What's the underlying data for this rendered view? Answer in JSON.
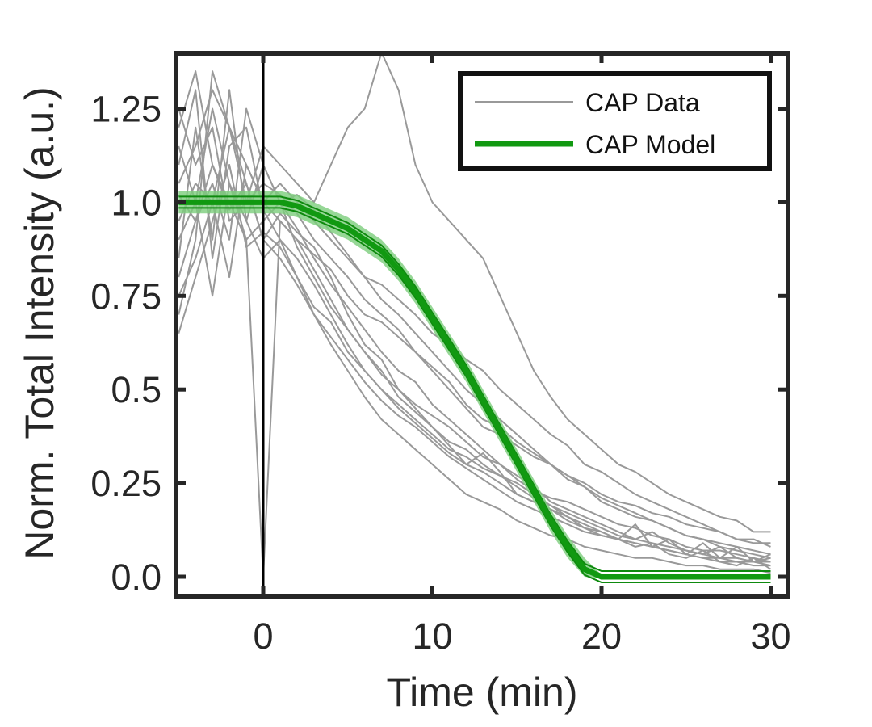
{
  "chart_data": {
    "type": "line",
    "title": "",
    "xlabel": "Time (min)",
    "ylabel": "Norm. Total Intensity (a.u.)",
    "xlim": [
      -5,
      30
    ],
    "ylim": [
      -0.05,
      1.4
    ],
    "xticks": [
      {
        "value": 0,
        "label": "0"
      },
      {
        "value": 10,
        "label": "10"
      },
      {
        "value": 20,
        "label": "20"
      },
      {
        "value": 30,
        "label": "30"
      }
    ],
    "yticks": [
      {
        "value": 0,
        "label": "0.0"
      },
      {
        "value": 0.25,
        "label": "0.25"
      },
      {
        "value": 0.5,
        "label": "0.5"
      },
      {
        "value": 0.75,
        "label": "0.75"
      },
      {
        "value": 1.0,
        "label": "1.0"
      },
      {
        "value": 1.25,
        "label": "1.25"
      }
    ],
    "grid": false,
    "legend_position": "top-right",
    "vline_x": 0,
    "colors": {
      "data": "#999999",
      "model": "#119911",
      "model_band": "#7ccd7c",
      "axes": "#262626",
      "vline": "#000000"
    },
    "series": [
      {
        "name": "CAP Data",
        "role": "data",
        "x": [
          -5,
          -4,
          -3,
          -2,
          -1,
          0,
          1,
          2,
          3,
          4,
          5,
          6,
          7,
          8,
          9,
          10,
          11,
          12,
          13,
          14,
          15,
          16,
          17,
          18,
          19,
          20,
          21,
          22,
          23,
          24,
          25,
          26,
          27,
          28,
          29,
          30
        ],
        "values": [
          1.02,
          0.95,
          1.1,
          0.98,
          1.05,
          0.9,
          0.97,
          0.92,
          0.88,
          0.8,
          0.7,
          0.62,
          0.58,
          0.5,
          0.45,
          0.4,
          0.35,
          0.3,
          0.33,
          0.28,
          0.22,
          0.2,
          0.18,
          0.15,
          0.13,
          0.12,
          0.1,
          0.14,
          0.08,
          0.1,
          0.06,
          0.09,
          0.05,
          0.08,
          0.04,
          0.06
        ]
      },
      {
        "name": "",
        "role": "data",
        "x": [
          -5,
          -4,
          -3,
          -2,
          -1,
          0,
          1,
          2,
          3,
          4,
          5,
          6,
          7,
          8,
          9,
          10,
          11,
          12,
          13,
          14,
          15,
          16,
          17,
          18,
          19,
          20,
          21,
          22,
          23,
          24,
          25,
          26,
          27,
          28,
          29,
          30
        ],
        "values": [
          0.85,
          1.2,
          0.9,
          1.3,
          0.95,
          1.1,
          1.0,
          0.93,
          0.85,
          0.78,
          0.72,
          0.66,
          0.6,
          0.55,
          0.52,
          0.46,
          0.42,
          0.38,
          0.34,
          0.3,
          0.27,
          0.24,
          0.2,
          0.18,
          0.16,
          0.14,
          0.12,
          0.1,
          0.12,
          0.09,
          0.07,
          0.06,
          0.08,
          0.05,
          0.04,
          0.05
        ]
      },
      {
        "name": "",
        "role": "data",
        "x": [
          -5,
          -4,
          -3,
          -2,
          -1,
          0,
          1,
          2,
          3,
          4,
          5,
          6,
          7,
          8,
          9,
          10,
          11,
          12,
          13,
          14,
          15,
          16,
          17,
          18,
          19,
          20,
          21,
          22,
          23,
          24,
          25,
          26,
          27,
          28,
          29,
          30
        ],
        "values": [
          1.15,
          1.0,
          1.25,
          1.05,
          0.9,
          0.0,
          0.95,
          0.9,
          0.82,
          0.74,
          0.66,
          0.6,
          0.55,
          0.48,
          0.44,
          0.4,
          0.36,
          0.34,
          0.3,
          0.27,
          0.25,
          0.22,
          0.19,
          0.16,
          0.13,
          0.11,
          0.1,
          0.08,
          0.09,
          0.06,
          0.05,
          0.07,
          0.04,
          0.03,
          0.05,
          0.02
        ]
      },
      {
        "name": "",
        "role": "data",
        "x": [
          -5,
          -4,
          -3,
          -2,
          -1,
          0,
          1,
          2,
          3,
          4,
          5,
          6,
          7,
          8,
          9,
          10,
          11,
          12,
          13,
          14,
          15,
          16,
          17,
          18,
          19,
          20,
          21,
          22,
          23,
          24,
          25,
          26,
          27,
          28,
          29,
          30
        ],
        "values": [
          0.7,
          0.9,
          1.35,
          1.2,
          1.0,
          1.05,
          1.02,
          0.97,
          0.9,
          0.85,
          0.8,
          0.74,
          0.7,
          0.66,
          0.6,
          0.56,
          0.52,
          0.46,
          0.42,
          0.4,
          0.36,
          0.33,
          0.3,
          0.26,
          0.24,
          0.2,
          0.18,
          0.16,
          0.15,
          0.13,
          0.11,
          0.1,
          0.08,
          0.07,
          0.06,
          0.05
        ]
      },
      {
        "name": "",
        "role": "data",
        "x": [
          -5,
          -4,
          -3,
          -2,
          -1,
          0,
          1,
          2,
          3,
          4,
          5,
          6,
          7,
          8,
          9,
          10,
          11,
          12,
          13,
          14,
          15,
          16,
          17,
          18,
          19,
          20,
          21,
          22,
          23,
          24,
          25,
          26,
          27,
          28,
          29,
          30
        ],
        "values": [
          1.1,
          1.3,
          0.85,
          1.15,
          1.2,
          0.98,
          0.9,
          0.85,
          0.78,
          0.7,
          0.62,
          0.55,
          0.5,
          0.45,
          0.41,
          0.37,
          0.33,
          0.3,
          0.28,
          0.25,
          0.22,
          0.2,
          0.18,
          0.16,
          0.14,
          0.12,
          0.1,
          0.09,
          0.08,
          0.07,
          0.06,
          0.05,
          0.04,
          0.04,
          0.03,
          0.03
        ]
      },
      {
        "name": "",
        "role": "data",
        "x": [
          -5,
          -4,
          -3,
          -2,
          -1,
          0,
          1,
          2,
          3,
          4,
          5,
          6,
          7,
          8,
          9,
          10,
          11,
          12,
          13,
          14,
          15,
          16,
          17,
          18,
          19,
          20,
          21,
          22,
          23,
          24,
          25,
          26,
          27,
          28,
          29,
          30
        ],
        "values": [
          0.95,
          1.05,
          1.0,
          0.8,
          1.1,
          1.0,
          1.05,
          1.0,
          0.95,
          0.9,
          0.85,
          0.8,
          0.78,
          0.74,
          0.7,
          0.65,
          0.62,
          0.58,
          0.55,
          0.5,
          0.46,
          0.42,
          0.38,
          0.35,
          0.3,
          0.28,
          0.25,
          0.22,
          0.2,
          0.18,
          0.16,
          0.14,
          0.12,
          0.1,
          0.1,
          0.08
        ]
      },
      {
        "name": "",
        "role": "data",
        "x": [
          -5,
          -4,
          -3,
          -2,
          -1,
          0,
          1,
          2,
          3,
          4,
          5,
          6,
          7,
          8,
          9,
          10,
          11,
          12,
          13,
          14,
          15,
          16,
          17,
          18,
          19,
          20,
          21,
          22,
          23,
          24,
          25,
          26,
          27,
          28,
          29,
          30
        ],
        "values": [
          0.65,
          0.8,
          0.95,
          1.1,
          0.88,
          0.92,
          0.88,
          0.8,
          0.7,
          0.62,
          0.55,
          0.48,
          0.42,
          0.38,
          0.34,
          0.3,
          0.26,
          0.22,
          0.2,
          0.18,
          0.15,
          0.13,
          0.11,
          0.1,
          0.08,
          0.07,
          0.06,
          0.05,
          0.05,
          0.04,
          0.03,
          0.03,
          0.02,
          0.02,
          0.02,
          0.01
        ]
      },
      {
        "name": "",
        "role": "data",
        "x": [
          -5,
          -4,
          -3,
          -2,
          -1,
          0,
          1,
          2,
          3,
          4,
          5,
          6,
          7,
          8,
          9,
          10,
          11,
          12,
          13,
          14,
          15,
          16,
          17,
          18,
          19,
          20,
          21,
          22,
          23,
          24,
          25,
          26,
          27,
          28,
          29,
          30
        ],
        "values": [
          1.25,
          1.1,
          1.2,
          0.95,
          1.0,
          1.15,
          1.1,
          1.05,
          1.0,
          1.1,
          1.2,
          1.25,
          1.4,
          1.3,
          1.1,
          1.0,
          0.95,
          0.9,
          0.85,
          0.75,
          0.65,
          0.55,
          0.48,
          0.42,
          0.38,
          0.34,
          0.3,
          0.28,
          0.25,
          0.22,
          0.2,
          0.18,
          0.16,
          0.15,
          0.12,
          0.12
        ]
      },
      {
        "name": "",
        "role": "data",
        "x": [
          -5,
          -4,
          -3,
          -2,
          -1,
          0,
          1,
          2,
          3,
          4,
          5,
          6,
          7,
          8,
          9,
          10,
          11,
          12,
          13,
          14,
          15,
          16,
          17,
          18,
          19,
          20,
          21,
          22,
          23,
          24,
          25,
          26,
          27,
          28,
          29,
          30
        ],
        "values": [
          0.9,
          1.0,
          0.75,
          1.05,
          0.95,
          0.85,
          0.9,
          0.8,
          0.72,
          0.68,
          0.6,
          0.55,
          0.5,
          0.46,
          0.42,
          0.38,
          0.34,
          0.32,
          0.29,
          0.27,
          0.24,
          0.21,
          0.19,
          0.17,
          0.15,
          0.13,
          0.11,
          0.1,
          0.09,
          0.08,
          0.07,
          0.06,
          0.05,
          0.05,
          0.04,
          0.04
        ]
      },
      {
        "name": "",
        "role": "data",
        "x": [
          -5,
          -4,
          -3,
          -2,
          -1,
          0,
          1,
          2,
          3,
          4,
          5,
          6,
          7,
          8,
          9,
          10,
          11,
          12,
          13,
          14,
          15,
          16,
          17,
          18,
          19,
          20,
          21,
          22,
          23,
          24,
          25,
          26,
          27,
          28,
          29,
          30
        ],
        "values": [
          1.05,
          1.15,
          1.3,
          1.2,
          1.1,
          1.0,
          0.95,
          0.9,
          0.86,
          0.82,
          0.75,
          0.7,
          0.68,
          0.64,
          0.6,
          0.55,
          0.5,
          0.45,
          0.4,
          0.38,
          0.35,
          0.32,
          0.3,
          0.27,
          0.25,
          0.22,
          0.2,
          0.19,
          0.17,
          0.16,
          0.14,
          0.13,
          0.12,
          0.1,
          0.09,
          0.09
        ]
      },
      {
        "name": "",
        "role": "data",
        "x": [
          -5,
          -4,
          -3,
          -2,
          -1,
          0,
          1,
          2,
          3,
          4,
          5,
          6,
          7,
          8,
          9,
          10,
          11,
          12,
          13,
          14,
          15,
          16,
          17,
          18,
          19,
          20,
          21,
          22,
          23,
          24,
          25,
          26,
          27,
          28,
          29,
          30
        ],
        "values": [
          0.8,
          0.95,
          1.05,
          0.9,
          1.25,
          1.1,
          1.0,
          0.88,
          0.8,
          0.72,
          0.66,
          0.6,
          0.54,
          0.5,
          0.46,
          0.43,
          0.4,
          0.36,
          0.32,
          0.3,
          0.26,
          0.23,
          0.21,
          0.2,
          0.18,
          0.16,
          0.14,
          0.13,
          0.11,
          0.1,
          0.08,
          0.07,
          0.07,
          0.06,
          0.05,
          0.04
        ]
      },
      {
        "name": "",
        "role": "data",
        "x": [
          -5,
          -4,
          -3,
          -2,
          -1,
          0,
          1,
          2,
          3,
          4,
          5,
          6,
          7,
          8,
          9,
          10,
          11,
          12,
          13,
          14,
          15,
          16,
          17,
          18,
          19,
          20,
          21,
          22,
          23,
          24,
          25,
          26,
          27,
          28,
          29,
          30
        ],
        "values": [
          1.2,
          1.35,
          1.1,
          1.0,
          0.9,
          0.95,
          1.0,
          1.02,
          0.98,
          0.92,
          0.86,
          0.8,
          0.74,
          0.7,
          0.65,
          0.6,
          0.55,
          0.5,
          0.46,
          0.42,
          0.38,
          0.34,
          0.3,
          0.27,
          0.24,
          0.21,
          0.19,
          0.17,
          0.15,
          0.13,
          0.11,
          0.1,
          0.09,
          0.08,
          0.07,
          0.06
        ]
      },
      {
        "name": "",
        "role": "data",
        "x": [
          -5,
          -4,
          -3,
          -2,
          -1,
          0,
          1,
          2,
          3,
          4,
          5,
          6,
          7,
          8,
          9,
          10,
          11,
          12,
          13,
          14,
          15,
          16,
          17,
          18,
          19,
          20,
          21,
          22,
          23,
          24,
          25,
          26,
          27,
          28,
          29,
          30
        ],
        "values": [
          0.75,
          0.85,
          1.0,
          1.2,
          1.05,
          0.9,
          0.85,
          0.78,
          0.7,
          0.64,
          0.58,
          0.52,
          0.47,
          0.43,
          0.4,
          0.36,
          0.32,
          0.29,
          0.26,
          0.23,
          0.2,
          0.18,
          0.16,
          0.14,
          0.12,
          0.11,
          0.1,
          0.09,
          0.08,
          0.07,
          0.06,
          0.05,
          0.05,
          0.04,
          0.04,
          0.03
        ]
      },
      {
        "name": "CAP Model",
        "role": "model",
        "x": [
          -5,
          -4,
          -3,
          -2,
          -1,
          0,
          1,
          2,
          3,
          4,
          5,
          6,
          7,
          8,
          9,
          10,
          11,
          12,
          13,
          14,
          15,
          16,
          17,
          18,
          19,
          20,
          21,
          22,
          23,
          24,
          25,
          26,
          27,
          28,
          29,
          30
        ],
        "values": [
          1.0,
          1.0,
          1.0,
          1.0,
          1.0,
          1.0,
          1.0,
          0.99,
          0.97,
          0.95,
          0.93,
          0.9,
          0.87,
          0.82,
          0.76,
          0.69,
          0.62,
          0.55,
          0.47,
          0.39,
          0.31,
          0.23,
          0.15,
          0.08,
          0.02,
          0.0,
          0.0,
          0.0,
          0.0,
          0.0,
          0.0,
          0.0,
          0.0,
          0.0,
          0.0,
          0.0
        ]
      }
    ]
  }
}
